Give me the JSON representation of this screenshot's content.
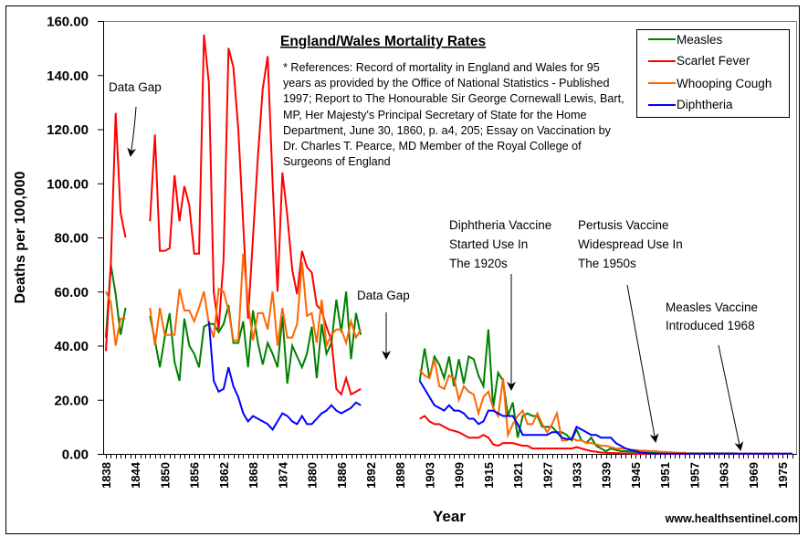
{
  "chart_data": {
    "type": "line",
    "title": "England/Wales Mortality Rates",
    "references": [
      "* References: Record of mortality in England and Wales for 95",
      "years as provided by the Office of National Statistics - Published",
      "1997; Report to The Honourable Sir George Cornewall Lewis, Bart,",
      "MP, Her Majesty's Principal Secretary of State for the Home",
      "Department, June 30, 1860, p. a4, 205; Essay on Vaccination by",
      "Dr. Charles T. Pearce, MD Member of the Royal College of",
      "Surgeons of England"
    ],
    "xlabel": "Year",
    "ylabel": "Deaths per 100,000",
    "ylim": [
      0,
      160
    ],
    "y_ticks": [
      "0.00",
      "20.00",
      "40.00",
      "60.00",
      "80.00",
      "100.00",
      "120.00",
      "140.00",
      "160.00"
    ],
    "x_category_year_ranges": [
      [
        1838,
        1898
      ],
      [
        1900,
        1979
      ]
    ],
    "x_tick_labels": [
      "1838",
      "1844",
      "1850",
      "1856",
      "1862",
      "1868",
      "1874",
      "1880",
      "1886",
      "1892",
      "1898",
      "1903",
      "1909",
      "1915",
      "1921",
      "1927",
      "1933",
      "1939",
      "1945",
      "1951",
      "1957",
      "1963",
      "1969",
      "1975"
    ],
    "grid": false,
    "legend_position": "top-right",
    "series": [
      {
        "name": "Measles",
        "color": "#008000",
        "segments": [
          {
            "start": 1838,
            "values": [
              43,
              70,
              59,
              44,
              54
            ]
          },
          {
            "start": 1847,
            "values": [
              51,
              42,
              32,
              43,
              52,
              34,
              27,
              50,
              40,
              37,
              32,
              47,
              48,
              48,
              45,
              48,
              55,
              41,
              41,
              49,
              32,
              53,
              41,
              33,
              41,
              37,
              32,
              51,
              26,
              40,
              36,
              32,
              37,
              47,
              28,
              48,
              37,
              41,
              57,
              45,
              60,
              35,
              52,
              44
            ]
          },
          {
            "start": 1903,
            "values": [
              27,
              39,
              28,
              36,
              33,
              28,
              36,
              25,
              35,
              26,
              36,
              35,
              29,
              25,
              46,
              17,
              30,
              27,
              14,
              19,
              6,
              14,
              15,
              14,
              14,
              10,
              10,
              10,
              8,
              8,
              7,
              5,
              9,
              5,
              4,
              6,
              3,
              2,
              1,
              2,
              1.5,
              1,
              1,
              0.8,
              0.7,
              0.6,
              0.5,
              0.5,
              0.4,
              0.4,
              0.3,
              0.3,
              0.3,
              0.3,
              0.2,
              0.2,
              0.2,
              0.2,
              0.2,
              0.2,
              0.2,
              0.2,
              0.2,
              0.2,
              0.2,
              0.1,
              0.1,
              0.1,
              0.1,
              0.1,
              0.1,
              0.1,
              0.1,
              0.1,
              0.1,
              0.1,
              0.1
            ]
          }
        ]
      },
      {
        "name": "Scarlet Fever",
        "color": "#FF0000",
        "segments": [
          {
            "start": 1838,
            "values": [
              38,
              70,
              126,
              89,
              80
            ]
          },
          {
            "start": 1847,
            "values": [
              86,
              118,
              75,
              75,
              76,
              103,
              86,
              99,
              92,
              74,
              74,
              155,
              137,
              60,
              46,
              72,
              150,
              143,
              120,
              85,
              50,
              80,
              110,
              135,
              147,
              100,
              60,
              104,
              88,
              68,
              59,
              75,
              69,
              67,
              55,
              53,
              47,
              42,
              24,
              22,
              28,
              22,
              23,
              24
            ]
          },
          {
            "start": 1903,
            "values": [
              13,
              14,
              12,
              11,
              11,
              10,
              9,
              8.5,
              8,
              7,
              6,
              6,
              6,
              7,
              6,
              3.5,
              3,
              4,
              4,
              4,
              3.5,
              3,
              3,
              2,
              2,
              2,
              2,
              2,
              2,
              2,
              2,
              2,
              2.5,
              2,
              1.5,
              1,
              0.8,
              0.5,
              0.4,
              0.3,
              0.3,
              0.2,
              0.2,
              0.1,
              0,
              0,
              0,
              0,
              0,
              0,
              0,
              0,
              0,
              0,
              0,
              0,
              0,
              0,
              0,
              0,
              0,
              0,
              0,
              0,
              0,
              0,
              0,
              0,
              0,
              0,
              0,
              0,
              0,
              0,
              0,
              0,
              0
            ]
          }
        ]
      },
      {
        "name": "Whooping Cough",
        "color": "#FF6600",
        "segments": [
          {
            "start": 1838,
            "values": [
              60,
              56,
              40,
              50,
              50
            ]
          },
          {
            "start": 1847,
            "values": [
              54,
              40,
              54,
              44,
              44,
              44,
              61,
              53,
              53,
              49,
              54,
              60,
              48,
              43,
              61,
              60,
              53,
              42,
              42,
              74,
              56,
              42,
              52,
              52,
              46,
              60,
              40,
              54,
              43,
              43,
              48,
              71,
              51,
              52,
              41,
              57,
              40,
              44,
              46,
              46,
              41,
              49,
              43,
              46
            ]
          },
          {
            "start": 1903,
            "values": [
              31,
              29,
              28,
              35,
              25,
              24,
              29,
              28,
              20,
              25,
              23,
              22,
              15,
              21,
              23,
              17,
              14,
              28,
              7,
              11,
              14,
              16,
              11,
              11,
              15,
              11,
              8,
              11,
              15,
              5,
              5,
              6,
              5,
              5,
              4,
              4,
              3.5,
              3,
              3,
              2.5,
              2,
              2,
              2,
              1.5,
              1.5,
              1.2,
              1.2,
              1,
              1,
              0.8,
              0.7,
              0.6,
              0.5,
              0.4,
              0.4,
              0.1,
              0.1,
              0.1,
              0.1,
              0.1,
              0.1,
              0.1,
              0.1,
              0.1,
              0.1,
              0.1,
              0.1,
              0.1,
              0.1,
              0.1,
              0.1,
              0.1,
              0.1,
              0.1,
              0.1,
              0.1,
              0.1
            ]
          }
        ]
      },
      {
        "name": "Diphtheria",
        "color": "#0000FF",
        "segments": [
          {
            "start": 1859,
            "values": [
              49,
              27,
              23,
              24,
              32,
              25,
              21,
              15,
              12,
              14,
              13,
              12,
              11,
              9,
              12,
              15,
              14,
              12,
              11,
              14,
              11,
              11,
              13,
              15,
              16,
              18,
              16,
              15,
              16,
              17,
              19,
              18
            ]
          },
          {
            "start": 1903,
            "values": [
              27,
              24,
              21,
              18,
              17,
              16,
              18,
              16,
              16,
              15,
              13,
              13,
              11,
              12,
              16,
              16,
              15,
              14,
              14,
              14,
              11,
              7,
              7,
              7,
              7,
              7,
              7,
              8,
              8,
              6,
              5.5,
              5.5,
              10,
              9,
              8,
              7,
              7,
              6,
              6,
              6,
              4,
              3,
              2,
              1.5,
              1,
              0.5,
              0.3,
              0.1,
              0.1,
              0.1,
              0.1,
              0.1,
              0.1,
              0.1,
              0.1,
              0.1,
              0.1,
              0.1,
              0.1,
              0.1,
              0.1,
              0.1,
              0.1,
              0.1,
              0.1,
              0.1,
              0.1,
              0.1,
              0.1,
              0.1,
              0.1,
              0.1,
              0.1,
              0.1,
              0.1,
              0.1,
              0.1
            ]
          }
        ]
      }
    ],
    "annotations": {
      "data_gap_1": "Data Gap",
      "data_gap_2": "Data Gap",
      "diphtheria": [
        "Diphtheria Vaccine",
        "Started Use In",
        "The 1920s"
      ],
      "pertussis": [
        "Pertusis Vaccine",
        "Widespread Use In",
        "The 1950s"
      ],
      "measles": [
        "Measles Vaccine",
        "Introduced 1968"
      ]
    },
    "source": "www.healthsentinel.com"
  }
}
